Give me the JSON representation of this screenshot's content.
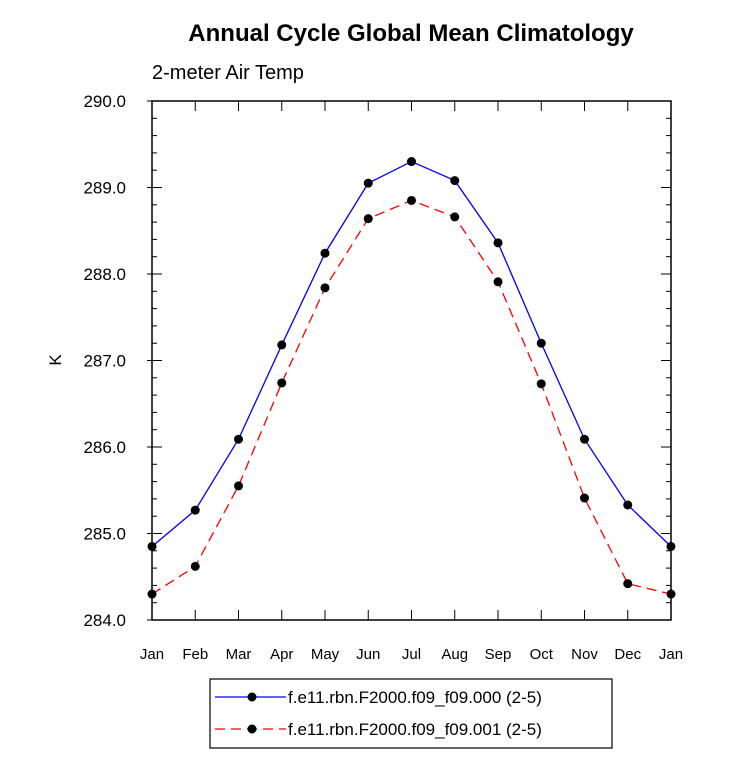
{
  "chart_data": {
    "type": "line",
    "title": "Annual Cycle Global Mean Climatology",
    "subtitle": "2-meter Air Temp",
    "xlabel": "",
    "ylabel": "K",
    "categories": [
      "Jan",
      "Feb",
      "Mar",
      "Apr",
      "May",
      "Jun",
      "Jul",
      "Aug",
      "Sep",
      "Oct",
      "Nov",
      "Dec",
      "Jan"
    ],
    "ylim": [
      284.0,
      290.0
    ],
    "yticks": [
      "284.0",
      "285.0",
      "286.0",
      "287.0",
      "288.0",
      "289.0",
      "290.0"
    ],
    "grid": false,
    "legend_position": "bottom",
    "series": [
      {
        "name": "f.e11.rbn.F2000.f09_f09.000 (2-5)",
        "color": "#0000ff",
        "dash": "solid",
        "values": [
          284.85,
          285.27,
          286.09,
          287.18,
          288.24,
          289.05,
          289.3,
          289.08,
          288.36,
          287.2,
          286.09,
          285.33,
          284.85
        ]
      },
      {
        "name": "f.e11.rbn.F2000.f09_f09.001 (2-5)",
        "color": "#ff0000",
        "dash": "dashed",
        "values": [
          284.3,
          284.62,
          285.55,
          286.74,
          287.84,
          288.64,
          288.85,
          288.66,
          287.91,
          286.73,
          285.41,
          284.42,
          284.3
        ]
      }
    ]
  }
}
